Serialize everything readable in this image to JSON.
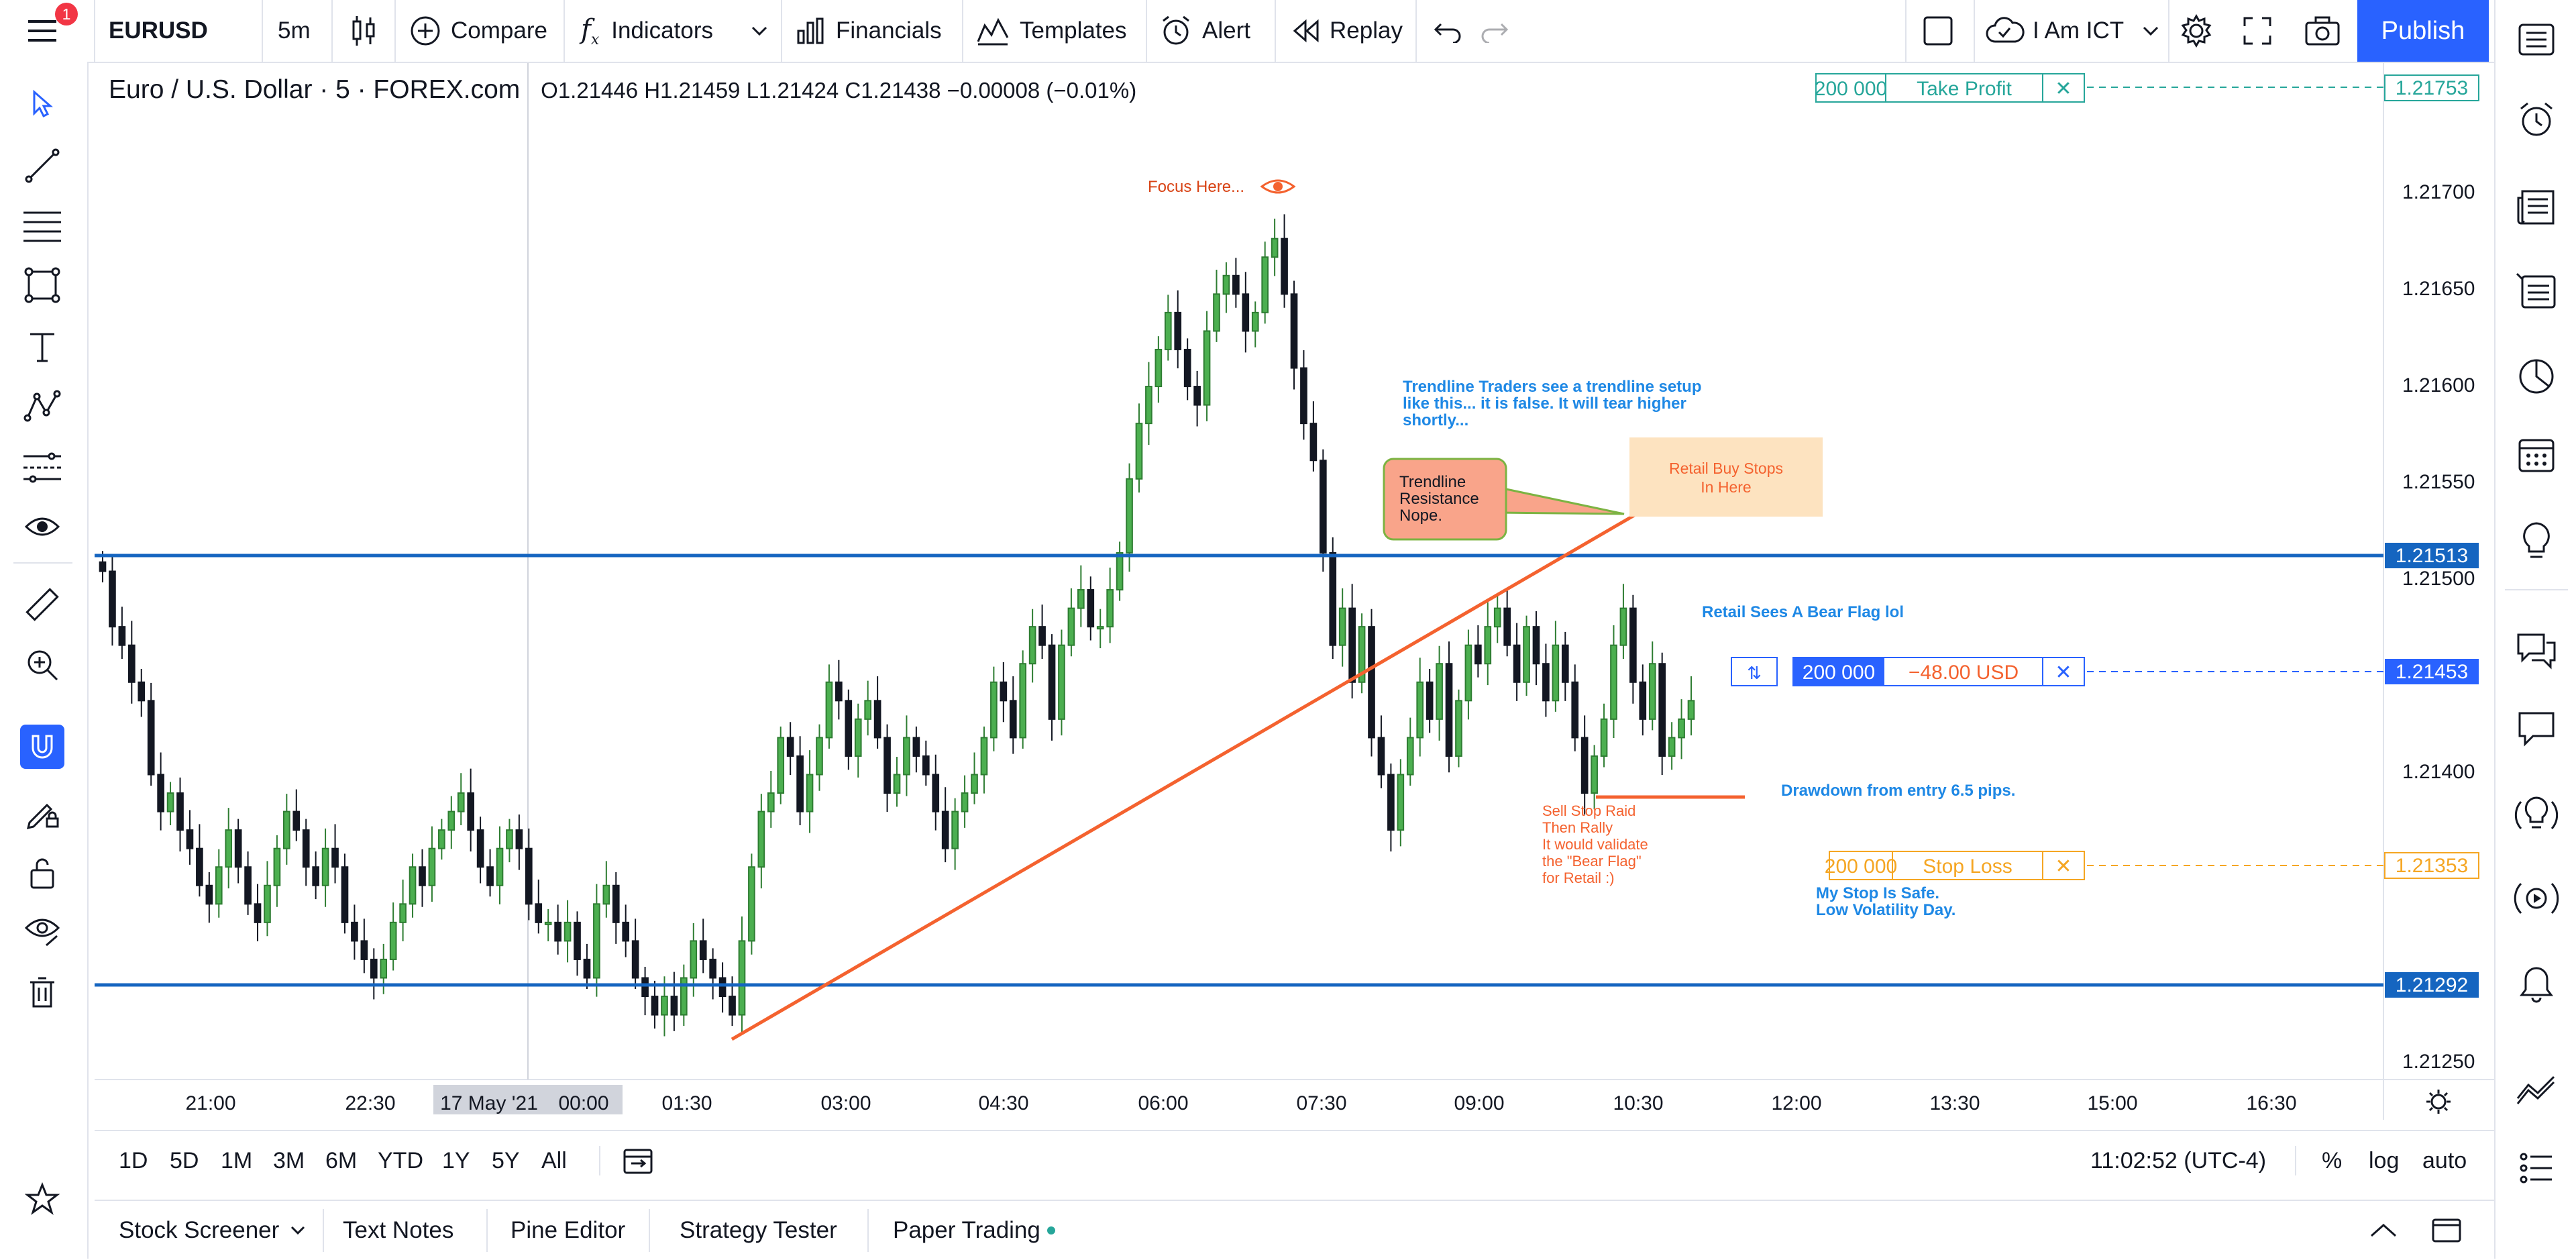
{
  "toolbar": {
    "symbol": "EURUSD",
    "interval": "5m",
    "compare_label": "Compare",
    "indicators_label": "Indicators",
    "financials_label": "Financials",
    "templates_label": "Templates",
    "alert_label": "Alert",
    "replay_label": "Replay",
    "layout_name": "I Am ICT",
    "publish_label": "Publish",
    "notification_count": "1"
  },
  "legend": {
    "title": "Euro / U.S. Dollar · 5 · FOREX.com",
    "ohlc": "O1.21446  H1.21459  L1.21424  C1.21438  −0.00008 (−0.01%)"
  },
  "price_axis": {
    "ticks": [
      "1.21700",
      "1.21650",
      "1.21600",
      "1.21550",
      "1.21500",
      "1.21400",
      "1.21250"
    ],
    "badges": [
      "1.21753",
      "1.21513",
      "1.21453",
      "1.21353",
      "1.21292"
    ]
  },
  "time_axis": {
    "ticks": [
      "21:00",
      "22:30",
      "17 May '21",
      "00:00",
      "01:30",
      "03:00",
      "04:30",
      "06:00",
      "07:30",
      "09:00",
      "10:30",
      "12:00",
      "13:30",
      "15:00",
      "16:30"
    ]
  },
  "orders": {
    "take_profit": {
      "qty": "200 000",
      "label": "Take Profit",
      "price": "1.21753"
    },
    "position": {
      "qty": "200 000",
      "pnl": "−48.00 USD",
      "price": "1.21453"
    },
    "stop_loss": {
      "qty": "200 000",
      "label": "Stop Loss",
      "price": "1.21353"
    }
  },
  "annotations": {
    "focus": "Focus Here...",
    "trendline_note": [
      "Trendline Traders see a trendline setup",
      "like this... it is false.  It will tear higher",
      "shortly..."
    ],
    "callout": [
      "Trendline",
      "Resistance",
      "Nope."
    ],
    "buy_stops": [
      "Retail Buy Stops",
      "In Here"
    ],
    "bear_flag": "Retail Sees A Bear Flag lol",
    "drawdown": "Drawdown from entry 6.5 pips.",
    "sell_stop": [
      "Sell Stop Raid",
      "Then Rally",
      "It would validate",
      "the \"Bear Flag\"",
      "for Retail :)"
    ],
    "stop_safe": [
      "My Stop Is Safe.",
      "Low Volatility Day."
    ]
  },
  "bottom_bar": {
    "ranges": [
      "1D",
      "5D",
      "1M",
      "3M",
      "6M",
      "YTD",
      "1Y",
      "5Y",
      "All"
    ],
    "clock": "11:02:52 (UTC-4)",
    "percent": "%",
    "log": "log",
    "auto": "auto"
  },
  "panel_tabs": [
    "Stock Screener",
    "Text Notes",
    "Pine Editor",
    "Strategy Tester",
    "Paper Trading"
  ],
  "colors": {
    "up": "#2e7d32",
    "down": "#131722",
    "level_line": "#1565c0",
    "trendline": "#f4622f",
    "accent": "#2962ff",
    "take_profit": "#26a69a",
    "stop_loss": "#f5a623"
  },
  "chart_data": {
    "type": "candlestick",
    "symbol": "EURUSD",
    "interval": "5m",
    "ylim": [
      1.21235,
      1.21785
    ],
    "levels": [
      1.21513,
      1.21292
    ],
    "orders": {
      "take_profit": 1.21753,
      "entry": 1.21453,
      "stop_loss": 1.21353
    },
    "closes": [
      1.2151,
      1.2148,
      1.2147,
      1.2145,
      1.2144,
      1.214,
      1.2138,
      1.2139,
      1.2137,
      1.2136,
      1.2134,
      1.2133,
      1.2135,
      1.2137,
      1.2135,
      1.2133,
      1.2132,
      1.2134,
      1.2136,
      1.2138,
      1.2137,
      1.2135,
      1.2134,
      1.2136,
      1.2135,
      1.2132,
      1.2131,
      1.213,
      1.2129,
      1.213,
      1.2132,
      1.2133,
      1.2135,
      1.2134,
      1.2136,
      1.2137,
      1.2138,
      1.2139,
      1.2137,
      1.2135,
      1.2134,
      1.2136,
      1.2137,
      1.2136,
      1.2133,
      1.2132,
      1.2132,
      1.2131,
      1.2132,
      1.213,
      1.2129,
      1.2133,
      1.2134,
      1.2132,
      1.2131,
      1.2129,
      1.2128,
      1.2127,
      1.2128,
      1.2127,
      1.2129,
      1.2131,
      1.213,
      1.2129,
      1.2128,
      1.2127,
      1.2131,
      1.2135,
      1.2138,
      1.2139,
      1.2142,
      1.2141,
      1.2138,
      1.214,
      1.2142,
      1.2145,
      1.2144,
      1.2141,
      1.2143,
      1.2144,
      1.2142,
      1.2139,
      1.214,
      1.2142,
      1.2141,
      1.214,
      1.2138,
      1.2136,
      1.2138,
      1.2139,
      1.214,
      1.2142,
      1.2145,
      1.2144,
      1.2142,
      1.2146,
      1.2148,
      1.2147,
      1.2143,
      1.2147,
      1.2149,
      1.215,
      1.2148,
      1.2148,
      1.215,
      1.2152,
      1.2156,
      1.2159,
      1.2161,
      1.2163,
      1.2165,
      1.2163,
      1.2161,
      1.216,
      1.2164,
      1.2166,
      1.2167,
      1.2166,
      1.2164,
      1.2165,
      1.2168,
      1.2169,
      1.2166,
      1.2162,
      1.2159,
      1.2157,
      1.2152,
      1.2147,
      1.2149,
      1.2145,
      1.2148,
      1.2142,
      1.214,
      1.2137,
      1.214,
      1.2142,
      1.2145,
      1.2143,
      1.2146,
      1.2141,
      1.2144,
      1.2147,
      1.2146,
      1.2148,
      1.2149,
      1.2147,
      1.2145,
      1.2148,
      1.2146,
      1.2144,
      1.2147,
      1.2145,
      1.2142,
      1.2139,
      1.2141,
      1.2143,
      1.2147,
      1.2149,
      1.2145,
      1.2143,
      1.2146,
      1.2141,
      1.2142,
      1.2143,
      1.2144
    ]
  }
}
